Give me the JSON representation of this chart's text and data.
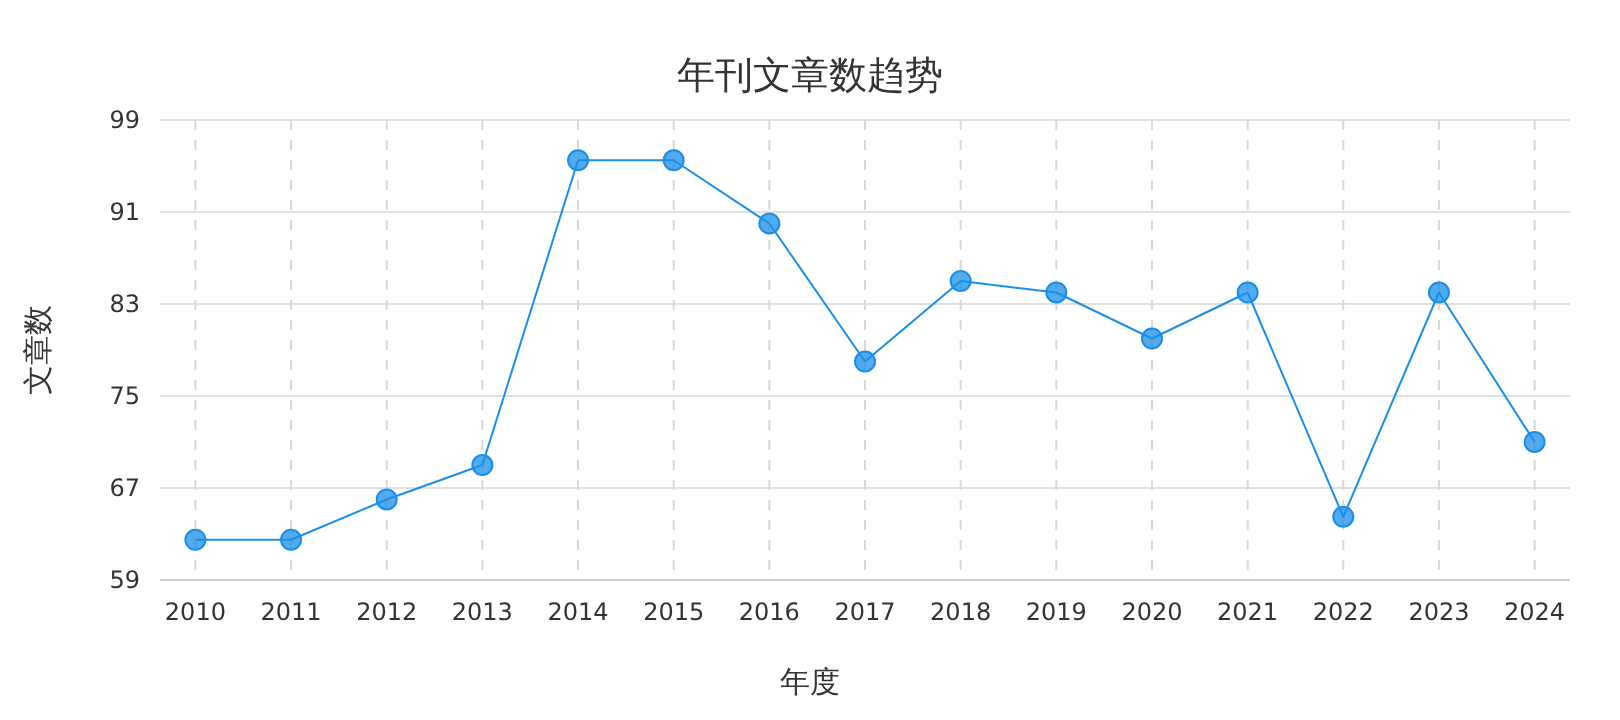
{
  "chart_data": {
    "type": "line",
    "title": "年刊文章数趋势",
    "xlabel": "年度",
    "ylabel": "文章数",
    "categories": [
      "2010",
      "2011",
      "2012",
      "2013",
      "2014",
      "2015",
      "2016",
      "2017",
      "2018",
      "2019",
      "2020",
      "2021",
      "2022",
      "2023",
      "2024"
    ],
    "series": [
      {
        "color": "#1a8fe8",
        "values": [
          62.5,
          62.5,
          66,
          69,
          95.5,
          95.5,
          90,
          78,
          85,
          84,
          80,
          84,
          64.5,
          84,
          71
        ]
      }
    ],
    "ylim": [
      59,
      99
    ],
    "yticks": [
      59,
      67,
      75,
      83,
      91,
      99
    ],
    "grid": true,
    "marker": "circle",
    "line_style": "solid"
  }
}
